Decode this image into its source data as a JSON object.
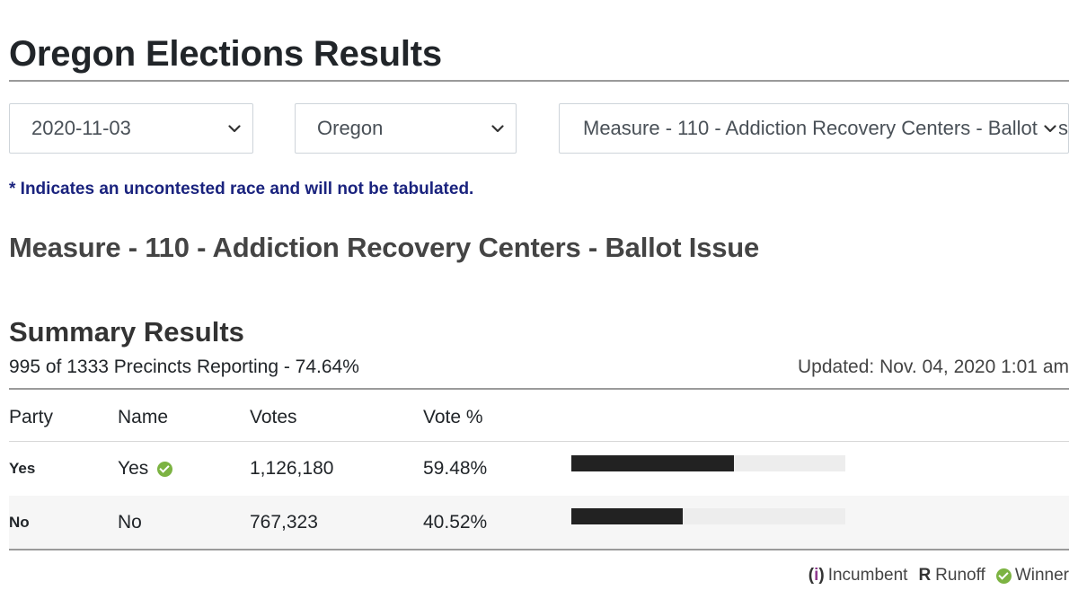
{
  "page": {
    "title": "Oregon Elections Results",
    "note": "* Indicates an uncontested race and will not be tabulated."
  },
  "filters": {
    "date": "2020-11-03",
    "region": "Oregon",
    "race": "Measure - 110 - Addiction Recovery Centers - Ballot Issue",
    "chevron_icon": "chevron-down-icon"
  },
  "race_title": "Measure - 110 - Addiction Recovery Centers - Ballot Issue",
  "summary": {
    "title": "Summary Results",
    "precincts": "995 of 1333 Precincts Reporting - 74.64%",
    "updated": "Updated: Nov. 04, 2020 1:01 am"
  },
  "table": {
    "headers": [
      "Party",
      "Name",
      "Votes",
      "Vote %"
    ],
    "rows": [
      {
        "party": "Yes",
        "name": "Yes",
        "votes": "1,126,180",
        "pct": "59.48%",
        "share": 0.5948,
        "winner": true
      },
      {
        "party": "No",
        "name": "No",
        "votes": "767,323",
        "pct": "40.52%",
        "share": 0.4052,
        "winner": false
      }
    ]
  },
  "legend": {
    "incumbent_mark": "(i)",
    "incumbent_label": "Incumbent",
    "runoff_mark": "R",
    "runoff_label": "Runoff",
    "winner_label": "Winner"
  },
  "colors": {
    "winner_green": "#7cb342",
    "bar_fill": "#222222",
    "bar_track": "#ededed",
    "note_blue": "#1a237e",
    "incumbent_purple": "#8e3a8e"
  }
}
